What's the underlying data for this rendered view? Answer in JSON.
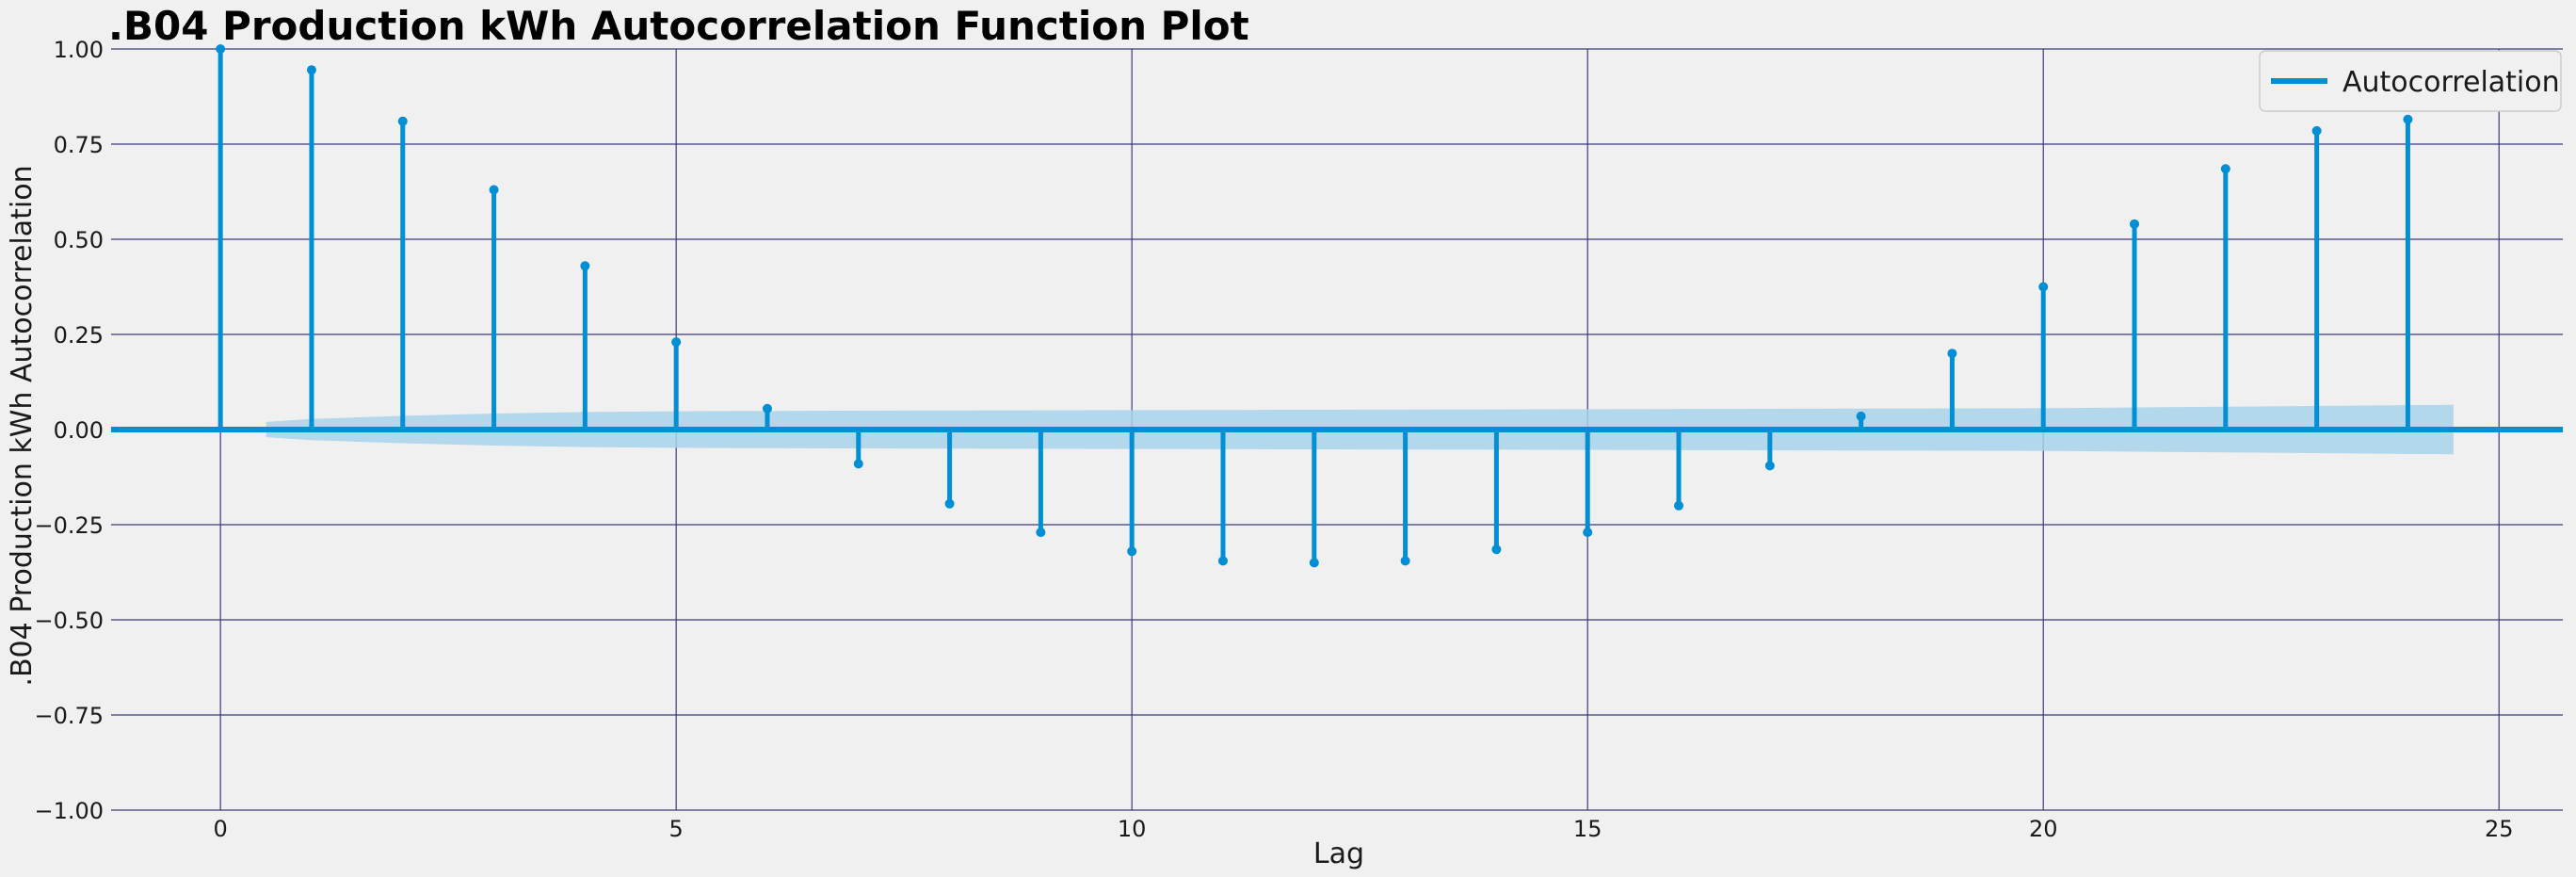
{
  "chart_data": {
    "type": "stem",
    "title": ".B04 Production kWh Autocorrelation Function Plot",
    "xlabel": "Lag",
    "ylabel": ".B04 Production kWh Autocorrelation",
    "xlim": [
      -1.2,
      25.7
    ],
    "ylim": [
      -1.0,
      1.0
    ],
    "xticks": [
      0,
      5,
      10,
      15,
      20,
      25
    ],
    "yticks": [
      -1.0,
      -0.75,
      -0.5,
      -0.25,
      0.0,
      0.25,
      0.5,
      0.75,
      1.0
    ],
    "ytick_labels": [
      "−1.00",
      "−0.75",
      "−0.50",
      "−0.25",
      "0.00",
      "0.25",
      "0.50",
      "0.75",
      "1.00"
    ],
    "xtick_labels": [
      "0",
      "5",
      "10",
      "15",
      "20",
      "25"
    ],
    "grid": true,
    "legend": {
      "position": "top-right",
      "entries": [
        "Autocorrelation"
      ]
    },
    "series": [
      {
        "name": "Autocorrelation",
        "lags": [
          0,
          1,
          2,
          3,
          4,
          5,
          6,
          7,
          8,
          9,
          10,
          11,
          12,
          13,
          14,
          15,
          16,
          17,
          18,
          19,
          20,
          21,
          22,
          23,
          24
        ],
        "values": [
          1.0,
          0.945,
          0.81,
          0.63,
          0.43,
          0.23,
          0.055,
          -0.09,
          -0.195,
          -0.27,
          -0.32,
          -0.345,
          -0.35,
          -0.345,
          -0.315,
          -0.27,
          -0.2,
          -0.095,
          0.035,
          0.2,
          0.375,
          0.54,
          0.685,
          0.785,
          0.815
        ],
        "color": "#008fd5"
      }
    ],
    "confidence_band": {
      "lags": [
        0.5,
        1,
        2,
        3,
        4,
        5,
        6,
        8,
        10,
        12,
        14,
        16,
        18,
        20,
        22,
        24,
        24.5
      ],
      "upper": [
        0.02,
        0.028,
        0.036,
        0.042,
        0.046,
        0.048,
        0.049,
        0.05,
        0.051,
        0.052,
        0.053,
        0.054,
        0.055,
        0.056,
        0.06,
        0.064,
        0.065
      ],
      "color": "#a8d2ea"
    },
    "colors": {
      "background": "#f0f0f0",
      "grid": "#3a3a7a",
      "stem": "#008fd5"
    }
  }
}
